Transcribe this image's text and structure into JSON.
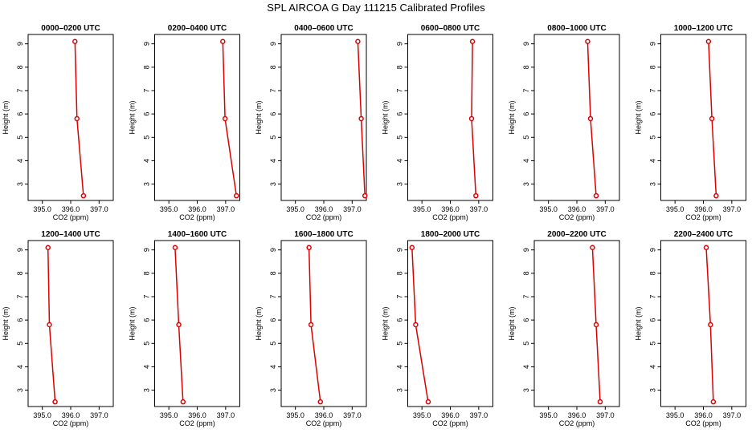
{
  "figure": {
    "title": "SPL AIRCOA G  Day 111215  Calibrated Profiles"
  },
  "style": {
    "line_color": "#dd0000",
    "marker_color": "#dd0000",
    "axis_color": "#000000"
  },
  "chart_data": [
    {
      "type": "line",
      "title": "0000–0200 UTC",
      "xlabel": "CO2 (ppm)",
      "ylabel": "Height (m)",
      "xlim": [
        394.5,
        397.5
      ],
      "ylim": [
        2.3,
        9.4
      ],
      "xticks": [
        395.0,
        396.0,
        397.0
      ],
      "xtick_labels": [
        "395.0",
        "396.0",
        "397.0"
      ],
      "yticks": [
        3,
        4,
        5,
        6,
        7,
        8,
        9
      ],
      "ytick_labels": [
        "3",
        "4",
        "5",
        "6",
        "7",
        "8",
        "9"
      ],
      "x": [
        396.15,
        396.22,
        396.45
      ],
      "y": [
        9.1,
        5.8,
        2.5
      ]
    },
    {
      "type": "line",
      "title": "0200–0400 UTC",
      "xlabel": "CO2 (ppm)",
      "ylabel": "Height (m)",
      "xlim": [
        394.5,
        397.5
      ],
      "ylim": [
        2.3,
        9.4
      ],
      "xticks": [
        395.0,
        396.0,
        397.0
      ],
      "xtick_labels": [
        "395.0",
        "396.0",
        "397.0"
      ],
      "yticks": [
        3,
        4,
        5,
        6,
        7,
        8,
        9
      ],
      "ytick_labels": [
        "3",
        "4",
        "5",
        "6",
        "7",
        "8",
        "9"
      ],
      "x": [
        396.9,
        396.98,
        397.38
      ],
      "y": [
        9.1,
        5.8,
        2.5
      ]
    },
    {
      "type": "line",
      "title": "0400–0600 UTC",
      "xlabel": "CO2 (ppm)",
      "ylabel": "Height (m)",
      "xlim": [
        394.5,
        397.5
      ],
      "ylim": [
        2.3,
        9.4
      ],
      "xticks": [
        395.0,
        396.0,
        397.0
      ],
      "xtick_labels": [
        "395.0",
        "396.0",
        "397.0"
      ],
      "yticks": [
        3,
        4,
        5,
        6,
        7,
        8,
        9
      ],
      "ytick_labels": [
        "3",
        "4",
        "5",
        "6",
        "7",
        "8",
        "9"
      ],
      "x": [
        397.2,
        397.32,
        397.45
      ],
      "y": [
        9.1,
        5.8,
        2.5
      ]
    },
    {
      "type": "line",
      "title": "0600–0800 UTC",
      "xlabel": "CO2 (ppm)",
      "ylabel": "Height (m)",
      "xlim": [
        394.5,
        397.5
      ],
      "ylim": [
        2.3,
        9.4
      ],
      "xticks": [
        395.0,
        396.0,
        397.0
      ],
      "xtick_labels": [
        "395.0",
        "396.0",
        "397.0"
      ],
      "yticks": [
        3,
        4,
        5,
        6,
        7,
        8,
        9
      ],
      "ytick_labels": [
        "3",
        "4",
        "5",
        "6",
        "7",
        "8",
        "9"
      ],
      "x": [
        396.78,
        396.75,
        396.9
      ],
      "y": [
        9.1,
        5.8,
        2.5
      ]
    },
    {
      "type": "line",
      "title": "0800–1000 UTC",
      "xlabel": "CO2 (ppm)",
      "ylabel": "Height (m)",
      "xlim": [
        394.5,
        397.5
      ],
      "ylim": [
        2.3,
        9.4
      ],
      "xticks": [
        395.0,
        396.0,
        397.0
      ],
      "xtick_labels": [
        "395.0",
        "396.0",
        "397.0"
      ],
      "yticks": [
        3,
        4,
        5,
        6,
        7,
        8,
        9
      ],
      "ytick_labels": [
        "3",
        "4",
        "5",
        "6",
        "7",
        "8",
        "9"
      ],
      "x": [
        396.38,
        396.48,
        396.68
      ],
      "y": [
        9.1,
        5.8,
        2.5
      ]
    },
    {
      "type": "line",
      "title": "1000–1200 UTC",
      "xlabel": "CO2 (ppm)",
      "ylabel": "Height (m)",
      "xlim": [
        394.5,
        397.5
      ],
      "ylim": [
        2.3,
        9.4
      ],
      "xticks": [
        395.0,
        396.0,
        397.0
      ],
      "xtick_labels": [
        "395.0",
        "396.0",
        "397.0"
      ],
      "yticks": [
        3,
        4,
        5,
        6,
        7,
        8,
        9
      ],
      "ytick_labels": [
        "3",
        "4",
        "5",
        "6",
        "7",
        "8",
        "9"
      ],
      "x": [
        396.18,
        396.3,
        396.45
      ],
      "y": [
        9.1,
        5.8,
        2.5
      ]
    },
    {
      "type": "line",
      "title": "1200–1400 UTC",
      "xlabel": "CO2 (ppm)",
      "ylabel": "Height (m)",
      "xlim": [
        394.5,
        397.5
      ],
      "ylim": [
        2.3,
        9.4
      ],
      "xticks": [
        395.0,
        396.0,
        397.0
      ],
      "xtick_labels": [
        "395.0",
        "396.0",
        "397.0"
      ],
      "yticks": [
        3,
        4,
        5,
        6,
        7,
        8,
        9
      ],
      "ytick_labels": [
        "3",
        "4",
        "5",
        "6",
        "7",
        "8",
        "9"
      ],
      "x": [
        395.2,
        395.25,
        395.45
      ],
      "y": [
        9.1,
        5.8,
        2.5
      ]
    },
    {
      "type": "line",
      "title": "1400–1600 UTC",
      "xlabel": "CO2 (ppm)",
      "ylabel": "Height (m)",
      "xlim": [
        394.5,
        397.5
      ],
      "ylim": [
        2.3,
        9.4
      ],
      "xticks": [
        395.0,
        396.0,
        397.0
      ],
      "xtick_labels": [
        "395.0",
        "396.0",
        "397.0"
      ],
      "yticks": [
        3,
        4,
        5,
        6,
        7,
        8,
        9
      ],
      "ytick_labels": [
        "3",
        "4",
        "5",
        "6",
        "7",
        "8",
        "9"
      ],
      "x": [
        395.22,
        395.35,
        395.5
      ],
      "y": [
        9.1,
        5.8,
        2.5
      ]
    },
    {
      "type": "line",
      "title": "1600–1800 UTC",
      "xlabel": "CO2 (ppm)",
      "ylabel": "Height (m)",
      "xlim": [
        394.5,
        397.5
      ],
      "ylim": [
        2.3,
        9.4
      ],
      "xticks": [
        395.0,
        396.0,
        397.0
      ],
      "xtick_labels": [
        "395.0",
        "396.0",
        "397.0"
      ],
      "yticks": [
        3,
        4,
        5,
        6,
        7,
        8,
        9
      ],
      "ytick_labels": [
        "3",
        "4",
        "5",
        "6",
        "7",
        "8",
        "9"
      ],
      "x": [
        395.48,
        395.55,
        395.88
      ],
      "y": [
        9.1,
        5.8,
        2.5
      ]
    },
    {
      "type": "line",
      "title": "1800–2000 UTC",
      "xlabel": "CO2 (ppm)",
      "ylabel": "Height (m)",
      "xlim": [
        394.5,
        397.5
      ],
      "ylim": [
        2.3,
        9.4
      ],
      "xticks": [
        395.0,
        396.0,
        397.0
      ],
      "xtick_labels": [
        "395.0",
        "396.0",
        "397.0"
      ],
      "yticks": [
        3,
        4,
        5,
        6,
        7,
        8,
        9
      ],
      "ytick_labels": [
        "3",
        "4",
        "5",
        "6",
        "7",
        "8",
        "9"
      ],
      "x": [
        394.65,
        394.78,
        395.22
      ],
      "y": [
        9.1,
        5.8,
        2.5
      ]
    },
    {
      "type": "line",
      "title": "2000–2200 UTC",
      "xlabel": "CO2 (ppm)",
      "ylabel": "Height (m)",
      "xlim": [
        394.5,
        397.5
      ],
      "ylim": [
        2.3,
        9.4
      ],
      "xticks": [
        395.0,
        396.0,
        397.0
      ],
      "xtick_labels": [
        "395.0",
        "396.0",
        "397.0"
      ],
      "yticks": [
        3,
        4,
        5,
        6,
        7,
        8,
        9
      ],
      "ytick_labels": [
        "3",
        "4",
        "5",
        "6",
        "7",
        "8",
        "9"
      ],
      "x": [
        396.55,
        396.68,
        396.82
      ],
      "y": [
        9.1,
        5.8,
        2.5
      ]
    },
    {
      "type": "line",
      "title": "2200–2400 UTC",
      "xlabel": "CO2 (ppm)",
      "ylabel": "Height (m)",
      "xlim": [
        394.5,
        397.5
      ],
      "ylim": [
        2.3,
        9.4
      ],
      "xticks": [
        395.0,
        396.0,
        397.0
      ],
      "xtick_labels": [
        "395.0",
        "396.0",
        "397.0"
      ],
      "yticks": [
        3,
        4,
        5,
        6,
        7,
        8,
        9
      ],
      "ytick_labels": [
        "3",
        "4",
        "5",
        "6",
        "7",
        "8",
        "9"
      ],
      "x": [
        396.1,
        396.25,
        396.35
      ],
      "y": [
        9.1,
        5.8,
        2.5
      ]
    }
  ]
}
